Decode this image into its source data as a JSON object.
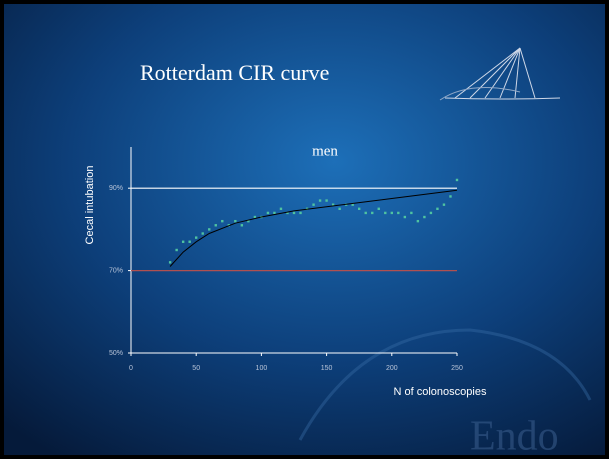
{
  "slide_title": "Rotterdam CIR curve",
  "watermark": "Endo",
  "chart_data": {
    "type": "scatter",
    "title": "men",
    "y_label": "Cecal intubation",
    "x_label": "N of colonoscopies",
    "xlim": [
      0,
      250
    ],
    "xticks": [
      0,
      50,
      100,
      150,
      200,
      250
    ],
    "ylim": [
      50,
      100
    ],
    "yticks": [
      {
        "value": 50,
        "label": "50%"
      },
      {
        "value": 70,
        "label": "70%"
      },
      {
        "value": 90,
        "label": "90%"
      }
    ],
    "reference_lines": [
      {
        "value": 90,
        "color": "#ffffff"
      },
      {
        "value": 70,
        "color": "#b05050"
      }
    ],
    "series": [
      {
        "type": "scatter",
        "color": "#4fc3a1",
        "x": [
          30,
          35,
          40,
          45,
          50,
          55,
          60,
          65,
          70,
          75,
          80,
          85,
          90,
          95,
          100,
          105,
          110,
          115,
          120,
          125,
          130,
          135,
          140,
          145,
          150,
          155,
          160,
          165,
          170,
          175,
          180,
          185,
          190,
          195,
          200,
          205,
          210,
          215,
          220,
          225,
          230,
          235,
          240,
          245,
          250
        ],
        "values": [
          72,
          75,
          77,
          77,
          78,
          79,
          80,
          81,
          82,
          81,
          82,
          81,
          82,
          83,
          83,
          84,
          84,
          85,
          84,
          84,
          84,
          85,
          86,
          87,
          87,
          86,
          85,
          86,
          86,
          85,
          84,
          84,
          85,
          84,
          84,
          84,
          83,
          84,
          82,
          83,
          84,
          85,
          86,
          88,
          92
        ]
      },
      {
        "type": "line",
        "color": "#000000",
        "x": [
          30,
          40,
          50,
          60,
          80,
          100,
          125,
          150,
          175,
          200,
          225,
          250
        ],
        "values": [
          71,
          74.5,
          77,
          79,
          81.5,
          83,
          84.5,
          85.5,
          86.5,
          87.5,
          88.5,
          89.5
        ]
      }
    ]
  }
}
